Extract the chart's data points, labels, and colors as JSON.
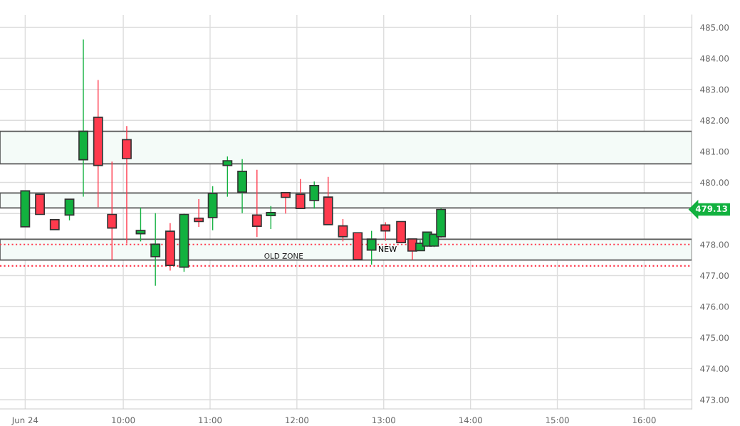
{
  "chart_data": {
    "type": "candlestick",
    "x": [
      8.87,
      9.04,
      9.21,
      9.38,
      9.54,
      9.71,
      9.87,
      10.04,
      10.2,
      10.37,
      10.54,
      10.7,
      10.87,
      11.03,
      11.2,
      11.37,
      11.54,
      11.7,
      11.87,
      12.04,
      12.2,
      12.36,
      12.53,
      12.7,
      12.86,
      13.02,
      13.2,
      13.33,
      13.42,
      13.5,
      13.58,
      13.66
    ],
    "ohlc": [
      [
        478.57,
        479.73,
        478.57,
        479.73
      ],
      [
        479.62,
        479.62,
        478.97,
        478.97
      ],
      [
        478.8,
        478.8,
        478.48,
        478.48
      ],
      [
        478.95,
        479.46,
        478.78,
        479.46
      ],
      [
        480.73,
        484.61,
        479.54,
        481.65
      ],
      [
        482.1,
        483.3,
        479.2,
        480.55
      ],
      [
        478.97,
        480.67,
        477.5,
        478.53
      ],
      [
        481.38,
        481.82,
        478.03,
        480.77
      ],
      [
        478.35,
        479.19,
        478.1,
        478.45
      ],
      [
        477.61,
        479.01,
        476.67,
        478.01
      ],
      [
        478.43,
        478.69,
        477.16,
        477.33
      ],
      [
        477.27,
        478.99,
        477.12,
        478.97
      ],
      [
        478.85,
        479.46,
        478.57,
        478.74
      ],
      [
        478.87,
        479.88,
        478.46,
        479.64
      ],
      [
        480.55,
        480.84,
        479.54,
        480.7
      ],
      [
        479.69,
        480.75,
        479.01,
        480.36
      ],
      [
        478.95,
        480.41,
        478.24,
        478.59
      ],
      [
        478.93,
        479.24,
        478.5,
        479.03
      ],
      [
        479.67,
        479.67,
        479.0,
        479.52
      ],
      [
        479.62,
        480.11,
        479.16,
        479.16
      ],
      [
        479.42,
        480.03,
        479.16,
        479.9
      ],
      [
        479.53,
        480.18,
        478.64,
        478.64
      ],
      [
        478.6,
        478.82,
        478.1,
        478.25
      ],
      [
        478.38,
        478.38,
        477.51,
        477.51
      ],
      [
        477.82,
        478.44,
        477.35,
        478.17
      ],
      [
        478.63,
        478.72,
        478.12,
        478.44
      ],
      [
        478.74,
        478.74,
        478.06,
        478.06
      ],
      [
        478.18,
        478.18,
        477.51,
        477.79
      ],
      [
        477.8,
        478.14,
        477.8,
        478.04
      ],
      [
        477.95,
        478.41,
        477.92,
        478.4
      ],
      [
        477.95,
        478.33,
        477.92,
        478.33
      ],
      [
        478.25,
        479.18,
        478.22,
        479.13
      ]
    ],
    "colors": [
      "#12b13f",
      "#ff3a4d",
      "#ff3a4d",
      "#12b13f",
      "#12b13f",
      "#ff3a4d",
      "#ff3a4d",
      "#ff3a4d",
      "#12b13f",
      "#12b13f",
      "#ff3a4d",
      "#12b13f",
      "#ff3a4d",
      "#12b13f",
      "#12b13f",
      "#12b13f",
      "#ff3a4d",
      "#12b13f",
      "#ff3a4d",
      "#ff3a4d",
      "#12b13f",
      "#ff3a4d",
      "#ff3a4d",
      "#ff3a4d",
      "#12b13f",
      "#ff3a4d",
      "#ff3a4d",
      "#ff3a4d",
      "#12b13f",
      "#12b13f",
      "#12b13f",
      "#12b13f"
    ],
    "xlim": [
      8.58,
      16.55
    ],
    "xticks": [
      {
        "value": 8.87,
        "label": "Jun 24"
      },
      {
        "value": 10,
        "label": "10:00"
      },
      {
        "value": 11,
        "label": "11:00"
      },
      {
        "value": 12,
        "label": "12:00"
      },
      {
        "value": 13,
        "label": "13:00"
      },
      {
        "value": 14,
        "label": "14:00"
      },
      {
        "value": 15,
        "label": "15:00"
      },
      {
        "value": 16,
        "label": "16:00"
      }
    ],
    "ylim": [
      472.7,
      485.4
    ],
    "yticks": [
      {
        "value": 473,
        "label": "473.00"
      },
      {
        "value": 474,
        "label": "474.00"
      },
      {
        "value": 475,
        "label": "475.00"
      },
      {
        "value": 476,
        "label": "476.00"
      },
      {
        "value": 477,
        "label": "477.00"
      },
      {
        "value": 478,
        "label": "478.00"
      },
      {
        "value": 479,
        "label": null
      },
      {
        "value": 480,
        "label": "480.00"
      },
      {
        "value": 481,
        "label": "481.00"
      },
      {
        "value": 482,
        "label": "482.00"
      },
      {
        "value": 483,
        "label": "483.00"
      },
      {
        "value": 484,
        "label": "484.00"
      },
      {
        "value": 485,
        "label": "485.00"
      }
    ],
    "grid": true,
    "bands": [
      {
        "axis": "y",
        "from": 480.6,
        "to": 481.65,
        "color": "#f4fbf8"
      },
      {
        "axis": "y",
        "from": 479.18,
        "to": 479.66,
        "color": "#f4fbf8"
      },
      {
        "axis": "y",
        "from": 477.5,
        "to": 478.17,
        "color": "#f4fbf8",
        "label": "NEW"
      }
    ],
    "ref_lines": [
      {
        "axis": "y",
        "value": 478.0,
        "color": "#ff3a4d",
        "line_style": "dotted"
      },
      {
        "axis": "y",
        "value": 477.31,
        "color": "#ff3a4d",
        "line_style": "dotted",
        "label": "OLD ZONE"
      }
    ],
    "annotations": [
      "479.13"
    ]
  }
}
